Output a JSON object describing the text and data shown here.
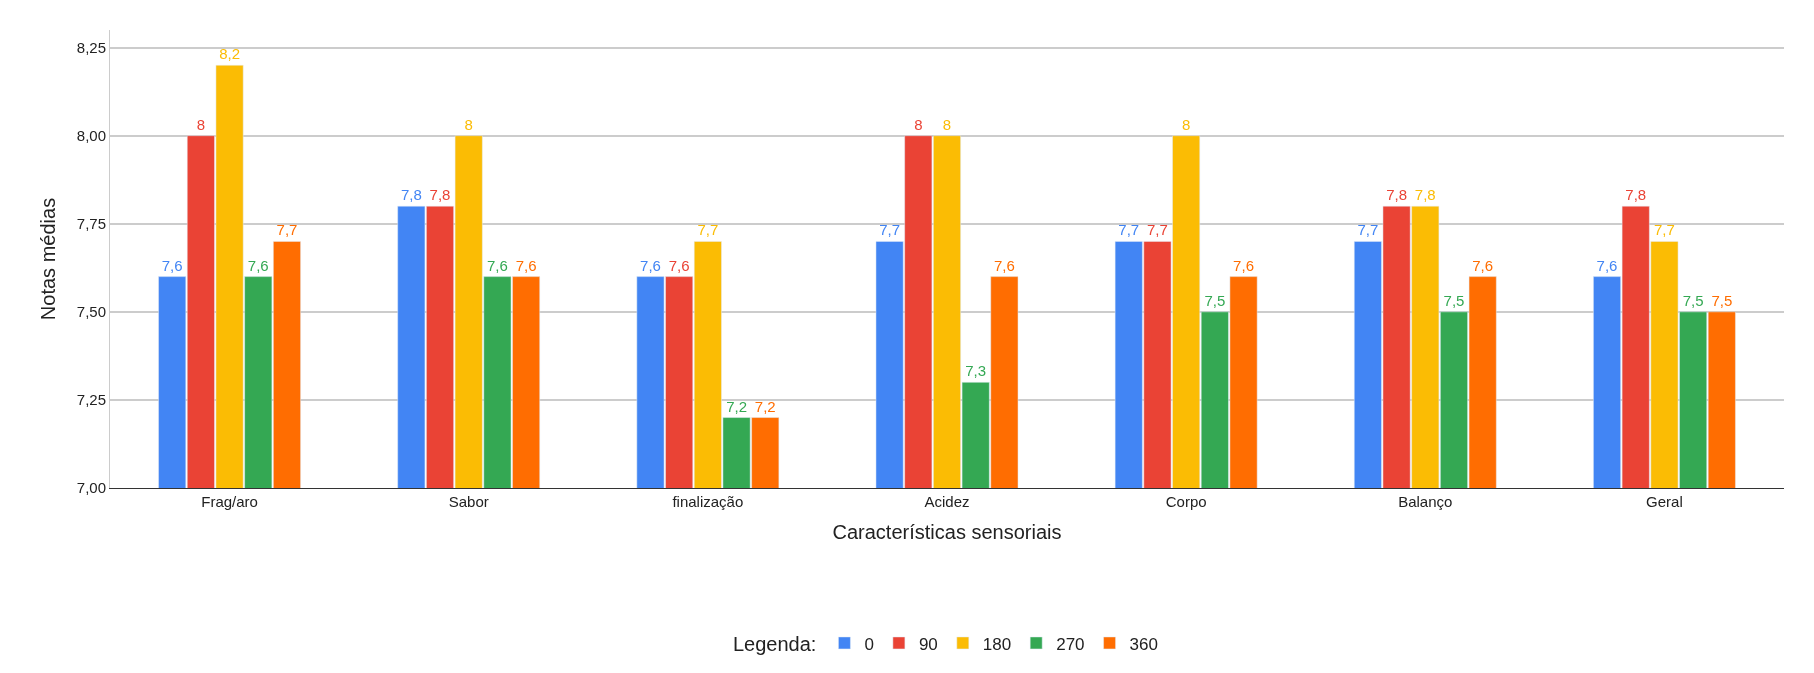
{
  "chart_data": {
    "type": "bar",
    "xlabel": "Características sensoriais",
    "ylabel": "Notas médias",
    "legend_title": "Legenda:",
    "categories": [
      "Frag/aro",
      "Sabor",
      "finalização",
      "Acidez",
      "Corpo",
      "Balanço",
      "Geral"
    ],
    "series": [
      {
        "name": "0",
        "color": "#4285f4",
        "values": [
          7.6,
          7.8,
          7.6,
          7.7,
          7.7,
          7.7,
          7.6
        ],
        "value_labels": [
          "7,6",
          "7,8",
          "7,6",
          "7,7",
          "7,7",
          "7,7",
          "7,6"
        ]
      },
      {
        "name": "90",
        "color": "#ea4335",
        "values": [
          8.0,
          7.8,
          7.6,
          8.0,
          7.7,
          7.8,
          7.8
        ],
        "value_labels": [
          "8",
          "7,8",
          "7,6",
          "8",
          "7,7",
          "7,8",
          "7,8"
        ]
      },
      {
        "name": "180",
        "color": "#fbbc04",
        "values": [
          8.2,
          8.0,
          7.7,
          8.0,
          8.0,
          7.8,
          7.7
        ],
        "value_labels": [
          "8,2",
          "8",
          "7,7",
          "8",
          "8",
          "7,8",
          "7,7"
        ]
      },
      {
        "name": "270",
        "color": "#34a853",
        "values": [
          7.6,
          7.6,
          7.2,
          7.3,
          7.5,
          7.5,
          7.5
        ],
        "value_labels": [
          "7,6",
          "7,6",
          "7,2",
          "7,3",
          "7,5",
          "7,5",
          "7,5"
        ]
      },
      {
        "name": "360",
        "color": "#ff6d01",
        "values": [
          7.7,
          7.6,
          7.2,
          7.6,
          7.6,
          7.6,
          7.5
        ],
        "value_labels": [
          "7,7",
          "7,6",
          "7,2",
          "7,6",
          "7,6",
          "7,6",
          "7,5"
        ]
      }
    ],
    "ylim": [
      7.0,
      8.3
    ],
    "yticks": [
      {
        "value": 7.0,
        "label": "7,00"
      },
      {
        "value": 7.25,
        "label": "7,25"
      },
      {
        "value": 7.5,
        "label": "7,50"
      },
      {
        "value": 7.75,
        "label": "7,75"
      },
      {
        "value": 8.0,
        "label": "8,00"
      },
      {
        "value": 8.25,
        "label": "8,25"
      }
    ],
    "grid": "y",
    "legend": "bottom"
  }
}
